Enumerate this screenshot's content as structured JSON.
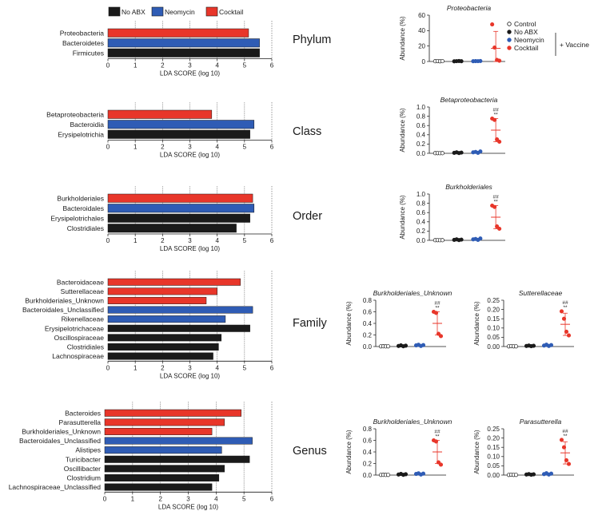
{
  "colors": {
    "no_abx": "#1a1a1a",
    "neomycin": "#2f5cb5",
    "cocktail": "#e8362a",
    "control": "#ffffff"
  },
  "legend": {
    "items": [
      {
        "label": "No ABX",
        "color": "#1a1a1a"
      },
      {
        "label": "Neomycin",
        "color": "#2f5cb5"
      },
      {
        "label": "Cocktail",
        "color": "#e8362a"
      }
    ]
  },
  "dot_legend": {
    "items": [
      {
        "label": "Control",
        "color": "#ffffff"
      },
      {
        "label": "No ABX",
        "color": "#1a1a1a"
      },
      {
        "label": "Neomycin",
        "color": "#2f5cb5"
      },
      {
        "label": "Cocktail",
        "color": "#e8362a"
      }
    ],
    "vaccine_label": "+ Vaccine"
  },
  "chart_data": [
    {
      "type": "bar",
      "orientation": "horizontal",
      "level": "Phylum",
      "xlabel": "LDA SCORE (log 10)",
      "xlim": [
        0,
        6
      ],
      "xticks": [
        "0",
        "1",
        "2",
        "3",
        "4",
        "5",
        "6"
      ],
      "bars": [
        {
          "label": "Proteobacteria",
          "value": 5.15,
          "group": "Cocktail"
        },
        {
          "label": "Bacteroidetes",
          "value": 5.55,
          "group": "Neomycin"
        },
        {
          "label": "Firmicutes",
          "value": 5.55,
          "group": "No ABX"
        }
      ]
    },
    {
      "type": "bar",
      "orientation": "horizontal",
      "level": "Class",
      "xlabel": "LDA SCORE (log 10)",
      "xlim": [
        0,
        6
      ],
      "xticks": [
        "0",
        "1",
        "2",
        "3",
        "4",
        "5",
        "6"
      ],
      "bars": [
        {
          "label": "Betaproteobacteria",
          "value": 3.8,
          "group": "Cocktail"
        },
        {
          "label": "Bacteroidia",
          "value": 5.35,
          "group": "Neomycin"
        },
        {
          "label": "Erysipelotrichia",
          "value": 5.2,
          "group": "No ABX"
        }
      ]
    },
    {
      "type": "bar",
      "orientation": "horizontal",
      "level": "Order",
      "xlabel": "LDA SCORE (log 10)",
      "xlim": [
        0,
        6
      ],
      "xticks": [
        "0",
        "1",
        "2",
        "3",
        "4",
        "5",
        "6"
      ],
      "bars": [
        {
          "label": "Burkholderiales",
          "value": 5.3,
          "group": "Cocktail"
        },
        {
          "label": "Bacteroidales",
          "value": 5.35,
          "group": "Neomycin"
        },
        {
          "label": "Erysipelotrichales",
          "value": 5.2,
          "group": "No ABX"
        },
        {
          "label": "Clostridiales",
          "value": 4.7,
          "group": "No ABX"
        }
      ]
    },
    {
      "type": "bar",
      "orientation": "horizontal",
      "level": "Family",
      "xlabel": "LDA SCORE (log 10)",
      "xlim": [
        0,
        6
      ],
      "xticks": [
        "0",
        "1",
        "2",
        "3",
        "4",
        "5",
        "6"
      ],
      "bars": [
        {
          "label": "Bacteroidaceae",
          "value": 4.85,
          "group": "Cocktail"
        },
        {
          "label": "Sutterellaceae",
          "value": 4.0,
          "group": "Cocktail"
        },
        {
          "label": "Burkholderiales_Unknown",
          "value": 3.6,
          "group": "Cocktail"
        },
        {
          "label": "Bacteroidales_Unclassified",
          "value": 5.3,
          "group": "Neomycin"
        },
        {
          "label": "Rikenellaceae",
          "value": 4.3,
          "group": "Neomycin"
        },
        {
          "label": "Erysipelotrichaceae",
          "value": 5.2,
          "group": "No ABX"
        },
        {
          "label": "Oscillospiraceae",
          "value": 4.15,
          "group": "No ABX"
        },
        {
          "label": "Clostridiales",
          "value": 4.05,
          "group": "No ABX"
        },
        {
          "label": "Lachnospiraceae",
          "value": 3.85,
          "group": "No ABX"
        }
      ]
    },
    {
      "type": "bar",
      "orientation": "horizontal",
      "level": "Genus",
      "xlabel": "LDA SCORE (log 10)",
      "xlim": [
        0,
        6
      ],
      "xticks": [
        "0",
        "1",
        "2",
        "3",
        "4",
        "5",
        "6"
      ],
      "bars": [
        {
          "label": "Bacteroides",
          "value": 4.9,
          "group": "Cocktail"
        },
        {
          "label": "Parasutterella",
          "value": 4.3,
          "group": "Cocktail"
        },
        {
          "label": "Burkholderiales_Unknown",
          "value": 3.85,
          "group": "Cocktail"
        },
        {
          "label": "Bacteroidales_Unclassified",
          "value": 5.3,
          "group": "Neomycin"
        },
        {
          "label": "Alistipes",
          "value": 4.2,
          "group": "Neomycin"
        },
        {
          "label": "Turicibacter",
          "value": 5.2,
          "group": "No ABX"
        },
        {
          "label": "Oscillibacter",
          "value": 4.3,
          "group": "No ABX"
        },
        {
          "label": "Clostridium",
          "value": 4.1,
          "group": "No ABX"
        },
        {
          "label": "Lachnospiraceae_Unclassified",
          "value": 3.85,
          "group": "No ABX"
        }
      ]
    },
    {
      "type": "scatter",
      "title": "Proteobacteria",
      "ylabel": "Abundance (%)",
      "ylim": [
        0,
        60
      ],
      "yticks": [
        "0",
        "20",
        "40",
        "60"
      ],
      "significance": [],
      "groups": [
        {
          "name": "Control",
          "values": [
            0.3,
            0.5,
            0.2,
            0.4
          ],
          "mean": 0.35,
          "sd": 0.1
        },
        {
          "name": "No ABX",
          "values": [
            0.2,
            0.4,
            0.6,
            0.3
          ],
          "mean": 0.4,
          "sd": 0.15
        },
        {
          "name": "Neomycin",
          "values": [
            0.3,
            0.5,
            0.4,
            0.6
          ],
          "mean": 0.45,
          "sd": 0.12
        },
        {
          "name": "Cocktail",
          "values": [
            48,
            18,
            2,
            1
          ],
          "mean": 17,
          "sd": 22
        }
      ]
    },
    {
      "type": "scatter",
      "title": "Betaproteobacteria",
      "ylabel": "Abundance (%)",
      "ylim": [
        0,
        1.0
      ],
      "yticks": [
        "0.0",
        "0.2",
        "0.4",
        "0.6",
        "0.8",
        "1.0"
      ],
      "significance": [
        "##",
        "**"
      ],
      "groups": [
        {
          "name": "Control",
          "values": [
            0.003,
            0.004,
            0.002,
            0.003
          ],
          "mean": 0.003,
          "sd": 0.001
        },
        {
          "name": "No ABX",
          "values": [
            0.01,
            0.02,
            0.005,
            0.015
          ],
          "mean": 0.012,
          "sd": 0.005
        },
        {
          "name": "Neomycin",
          "values": [
            0.02,
            0.03,
            0.01,
            0.04
          ],
          "mean": 0.025,
          "sd": 0.01
        },
        {
          "name": "Cocktail",
          "values": [
            0.75,
            0.72,
            0.3,
            0.25
          ],
          "mean": 0.5,
          "sd": 0.25
        }
      ]
    },
    {
      "type": "scatter",
      "title": "Burkholderiales",
      "ylabel": "Abundance (%)",
      "ylim": [
        0,
        1.0
      ],
      "yticks": [
        "0.0",
        "0.2",
        "0.4",
        "0.6",
        "0.8",
        "1.0"
      ],
      "significance": [
        "##",
        "**"
      ],
      "groups": [
        {
          "name": "Control",
          "values": [
            0.003,
            0.004,
            0.002,
            0.003
          ],
          "mean": 0.003,
          "sd": 0.001
        },
        {
          "name": "No ABX",
          "values": [
            0.01,
            0.02,
            0.005,
            0.015
          ],
          "mean": 0.012,
          "sd": 0.005
        },
        {
          "name": "Neomycin",
          "values": [
            0.02,
            0.03,
            0.01,
            0.04
          ],
          "mean": 0.025,
          "sd": 0.01
        },
        {
          "name": "Cocktail",
          "values": [
            0.75,
            0.72,
            0.3,
            0.25
          ],
          "mean": 0.5,
          "sd": 0.25
        }
      ]
    },
    {
      "type": "scatter",
      "title": "Burkholderiales_Unknown",
      "ylabel": "Abundance (%)",
      "ylim": [
        0,
        0.8
      ],
      "yticks": [
        "0.0",
        "0.2",
        "0.4",
        "0.6",
        "0.8"
      ],
      "significance": [
        "##",
        "**"
      ],
      "groups": [
        {
          "name": "Control",
          "values": [
            0.003,
            0.004,
            0.002,
            0.003
          ],
          "mean": 0.003,
          "sd": 0.001
        },
        {
          "name": "No ABX",
          "values": [
            0.01,
            0.02,
            0.005,
            0.015
          ],
          "mean": 0.012,
          "sd": 0.005
        },
        {
          "name": "Neomycin",
          "values": [
            0.02,
            0.03,
            0.01,
            0.025
          ],
          "mean": 0.02,
          "sd": 0.008
        },
        {
          "name": "Cocktail",
          "values": [
            0.6,
            0.58,
            0.22,
            0.18
          ],
          "mean": 0.4,
          "sd": 0.2
        }
      ]
    },
    {
      "type": "scatter",
      "title": "Sutterellaceae",
      "ylabel": "Abundance (%)",
      "ylim": [
        0,
        0.25
      ],
      "yticks": [
        "0.00",
        "0.05",
        "0.10",
        "0.15",
        "0.20",
        "0.25"
      ],
      "significance": [
        "##",
        "**"
      ],
      "groups": [
        {
          "name": "Control",
          "values": [
            0.001,
            0.002,
            0.001,
            0.001
          ],
          "mean": 0.001,
          "sd": 0.0005
        },
        {
          "name": "No ABX",
          "values": [
            0.003,
            0.005,
            0.002,
            0.004
          ],
          "mean": 0.004,
          "sd": 0.001
        },
        {
          "name": "Neomycin",
          "values": [
            0.005,
            0.01,
            0.003,
            0.008
          ],
          "mean": 0.006,
          "sd": 0.003
        },
        {
          "name": "Cocktail",
          "values": [
            0.19,
            0.15,
            0.08,
            0.06
          ],
          "mean": 0.12,
          "sd": 0.06
        }
      ]
    },
    {
      "type": "scatter",
      "title": "Burkholderiales_Unknown",
      "ylabel": "Abundance (%)",
      "ylim": [
        0,
        0.8
      ],
      "yticks": [
        "0.0",
        "0.2",
        "0.4",
        "0.6",
        "0.8"
      ],
      "significance": [
        "##",
        "**"
      ],
      "groups": [
        {
          "name": "Control",
          "values": [
            0.003,
            0.004,
            0.002,
            0.003
          ],
          "mean": 0.003,
          "sd": 0.001
        },
        {
          "name": "No ABX",
          "values": [
            0.01,
            0.02,
            0.005,
            0.015
          ],
          "mean": 0.012,
          "sd": 0.005
        },
        {
          "name": "Neomycin",
          "values": [
            0.02,
            0.03,
            0.01,
            0.025
          ],
          "mean": 0.02,
          "sd": 0.008
        },
        {
          "name": "Cocktail",
          "values": [
            0.6,
            0.58,
            0.22,
            0.18
          ],
          "mean": 0.4,
          "sd": 0.2
        }
      ]
    },
    {
      "type": "scatter",
      "title": "Parasutterella",
      "ylabel": "Abundance (%)",
      "ylim": [
        0,
        0.25
      ],
      "yticks": [
        "0.00",
        "0.05",
        "0.10",
        "0.15",
        "0.20",
        "0.25"
      ],
      "significance": [
        "##",
        "**"
      ],
      "groups": [
        {
          "name": "Control",
          "values": [
            0.001,
            0.002,
            0.001,
            0.001
          ],
          "mean": 0.001,
          "sd": 0.0005
        },
        {
          "name": "No ABX",
          "values": [
            0.003,
            0.005,
            0.002,
            0.004
          ],
          "mean": 0.004,
          "sd": 0.001
        },
        {
          "name": "Neomycin",
          "values": [
            0.005,
            0.01,
            0.003,
            0.008
          ],
          "mean": 0.006,
          "sd": 0.003
        },
        {
          "name": "Cocktail",
          "values": [
            0.19,
            0.15,
            0.08,
            0.06
          ],
          "mean": 0.12,
          "sd": 0.06
        }
      ]
    }
  ]
}
